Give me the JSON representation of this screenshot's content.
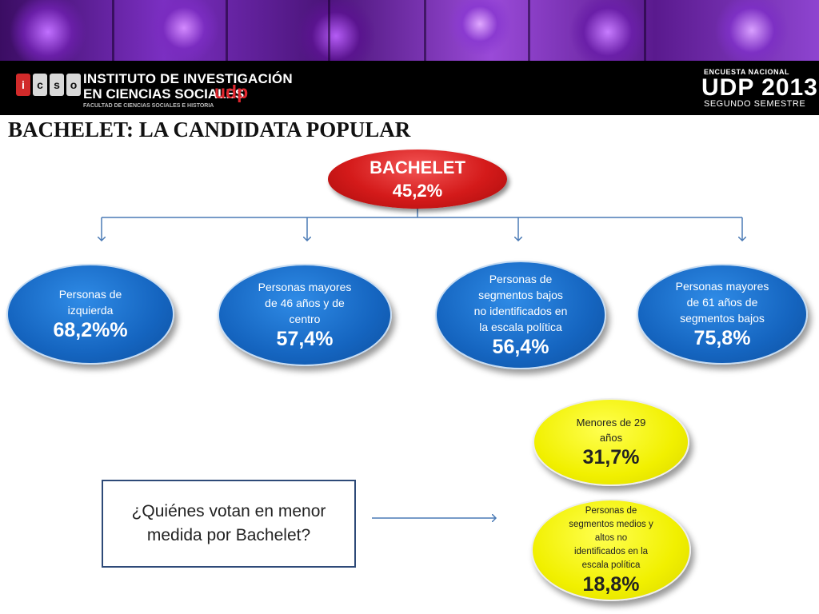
{
  "header": {
    "logo_letters": [
      "i",
      "c",
      "s",
      "o"
    ],
    "institute_line1": "INSTITUTO DE INVESTIGACIÓN",
    "institute_line2": "EN CIENCIAS SOCIALES",
    "udp": "udp",
    "faculty": "FACULTAD DE CIENCIAS SOCIALES E HISTORIA",
    "survey_label": "ENCUESTA NACIONAL",
    "survey_title": "UDP 2013",
    "survey_semester": "SEGUNDO SEMESTRE"
  },
  "page_title": "BACHELET: LA CANDIDATA POPULAR",
  "root": {
    "label": "BACHELET",
    "value": "45,2%",
    "color": "#d41a1a"
  },
  "branches": [
    {
      "label_lines": [
        "Personas de",
        "izquierda"
      ],
      "value": "68,2%%"
    },
    {
      "label_lines": [
        "Personas mayores",
        "de 46 años y de",
        "centro"
      ],
      "value": "57,4%"
    },
    {
      "label_lines": [
        "Personas de",
        "segmentos bajos",
        "no identificados en",
        "la escala política"
      ],
      "value": "56,4%"
    },
    {
      "label_lines": [
        "Personas mayores",
        "de  61 años de",
        "segmentos bajos"
      ],
      "value": "75,8%"
    }
  ],
  "low_groups": [
    {
      "label_lines": [
        "Menores de 29",
        "años"
      ],
      "value": "31,7%"
    },
    {
      "label_lines": [
        "Personas de",
        "segmentos medios y",
        "altos no",
        "identificados en la",
        "escala política"
      ],
      "value": "18,8%"
    }
  ],
  "question": {
    "line1": "¿Quiénes votan en menor",
    "line2": "medida por Bachelet?"
  },
  "colors": {
    "blue": "#1565c0",
    "yellow": "#f1f000",
    "red": "#d41a1a",
    "connector": "#4a7ab5"
  }
}
